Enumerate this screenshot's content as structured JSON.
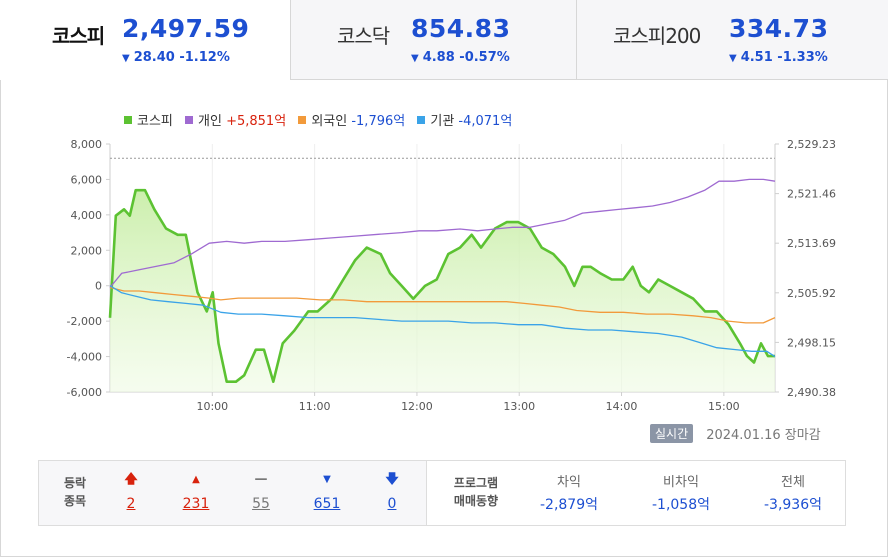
{
  "tabs": [
    {
      "name": "코스피",
      "value": "2,497.59",
      "change": "28.40 -1.12%"
    },
    {
      "name": "코스닥",
      "value": "854.83",
      "change": "4.88 -0.57%"
    },
    {
      "name": "코스피200",
      "value": "334.73",
      "change": "4.51 -1.33%"
    }
  ],
  "legend": [
    {
      "name": "코스피",
      "value": "",
      "color": "#5cc232"
    },
    {
      "name": "개인",
      "value": "+5,851억",
      "color": "#9f6ad1"
    },
    {
      "name": "외국인",
      "value": "-1,796억",
      "color": "#f29a3b"
    },
    {
      "name": "기관",
      "value": "-4,071억",
      "color": "#3aa3e8"
    }
  ],
  "chart_data": {
    "type": "line",
    "y_left_ticks": [
      "8,000",
      "6,000",
      "4,000",
      "2,000",
      "0",
      "-2,000",
      "-4,000",
      "-6,000"
    ],
    "y_right_ticks": [
      "2,529.23",
      "2,521.46",
      "2,513.69",
      "2,505.92",
      "2,498.15",
      "2,490.38"
    ],
    "x_ticks": [
      "10:00",
      "11:00",
      "12:00",
      "13:00",
      "14:00",
      "15:00"
    ],
    "x_range": [
      "09:00",
      "15:30"
    ],
    "ylim_left": [
      -6000,
      8000
    ],
    "ylim_right": [
      2490.38,
      2529.23
    ],
    "series": [
      {
        "name": "코스피",
        "axis": "right",
        "color": "#5cc232",
        "points": [
          [
            0,
            2502
          ],
          [
            5,
            2518
          ],
          [
            12,
            2519
          ],
          [
            17,
            2518
          ],
          [
            22,
            2522
          ],
          [
            30,
            2522
          ],
          [
            38,
            2519
          ],
          [
            48,
            2516
          ],
          [
            58,
            2515
          ],
          [
            65,
            2515
          ],
          [
            75,
            2506
          ],
          [
            83,
            2503
          ],
          [
            88,
            2506
          ],
          [
            93,
            2498
          ],
          [
            100,
            2492
          ],
          [
            108,
            2492
          ],
          [
            115,
            2493
          ],
          [
            125,
            2497
          ],
          [
            132,
            2497
          ],
          [
            140,
            2492
          ],
          [
            148,
            2498
          ],
          [
            158,
            2500
          ],
          [
            170,
            2503
          ],
          [
            178,
            2503
          ],
          [
            190,
            2505
          ],
          [
            200,
            2508
          ],
          [
            210,
            2511
          ],
          [
            220,
            2513
          ],
          [
            232,
            2512
          ],
          [
            240,
            2509
          ],
          [
            250,
            2507
          ],
          [
            260,
            2505
          ],
          [
            270,
            2507
          ],
          [
            280,
            2508
          ],
          [
            290,
            2512
          ],
          [
            300,
            2513
          ],
          [
            310,
            2515
          ],
          [
            318,
            2513
          ],
          [
            330,
            2516
          ],
          [
            340,
            2517
          ],
          [
            350,
            2517
          ],
          [
            360,
            2516
          ],
          [
            370,
            2513
          ],
          [
            380,
            2512
          ],
          [
            390,
            2510
          ],
          [
            398,
            2507
          ],
          [
            405,
            2510
          ],
          [
            412,
            2510
          ],
          [
            420,
            2509
          ],
          [
            430,
            2508
          ],
          [
            440,
            2508
          ],
          [
            448,
            2510
          ],
          [
            455,
            2507
          ],
          [
            462,
            2506
          ],
          [
            470,
            2508
          ],
          [
            480,
            2507
          ],
          [
            490,
            2506
          ],
          [
            500,
            2505
          ],
          [
            510,
            2503
          ],
          [
            520,
            2503
          ],
          [
            530,
            2501
          ],
          [
            540,
            2498
          ],
          [
            546,
            2496
          ],
          [
            552,
            2495
          ],
          [
            558,
            2498
          ],
          [
            564,
            2496
          ],
          [
            570,
            2496
          ]
        ]
      },
      {
        "name": "개인",
        "axis": "left",
        "color": "#9f6ad1",
        "points": [
          [
            0,
            -100
          ],
          [
            10,
            700
          ],
          [
            25,
            900
          ],
          [
            40,
            1100
          ],
          [
            55,
            1300
          ],
          [
            70,
            1800
          ],
          [
            85,
            2400
          ],
          [
            100,
            2500
          ],
          [
            115,
            2400
          ],
          [
            130,
            2500
          ],
          [
            150,
            2500
          ],
          [
            170,
            2600
          ],
          [
            190,
            2700
          ],
          [
            210,
            2800
          ],
          [
            230,
            2900
          ],
          [
            250,
            3000
          ],
          [
            265,
            3100
          ],
          [
            280,
            3100
          ],
          [
            300,
            3200
          ],
          [
            315,
            3100
          ],
          [
            330,
            3200
          ],
          [
            345,
            3300
          ],
          [
            360,
            3300
          ],
          [
            375,
            3500
          ],
          [
            390,
            3700
          ],
          [
            405,
            4100
          ],
          [
            420,
            4200
          ],
          [
            435,
            4300
          ],
          [
            450,
            4400
          ],
          [
            465,
            4500
          ],
          [
            480,
            4700
          ],
          [
            495,
            5000
          ],
          [
            510,
            5400
          ],
          [
            522,
            5900
          ],
          [
            535,
            5900
          ],
          [
            548,
            6000
          ],
          [
            560,
            6000
          ],
          [
            570,
            5900
          ]
        ]
      },
      {
        "name": "외국인",
        "axis": "left",
        "color": "#f29a3b",
        "points": [
          [
            0,
            -100
          ],
          [
            12,
            -300
          ],
          [
            25,
            -300
          ],
          [
            40,
            -400
          ],
          [
            55,
            -500
          ],
          [
            70,
            -600
          ],
          [
            85,
            -700
          ],
          [
            95,
            -800
          ],
          [
            110,
            -700
          ],
          [
            125,
            -700
          ],
          [
            140,
            -700
          ],
          [
            160,
            -700
          ],
          [
            180,
            -800
          ],
          [
            200,
            -800
          ],
          [
            220,
            -900
          ],
          [
            240,
            -900
          ],
          [
            260,
            -900
          ],
          [
            280,
            -900
          ],
          [
            300,
            -900
          ],
          [
            320,
            -900
          ],
          [
            340,
            -900
          ],
          [
            355,
            -1000
          ],
          [
            370,
            -1100
          ],
          [
            385,
            -1200
          ],
          [
            400,
            -1400
          ],
          [
            420,
            -1500
          ],
          [
            440,
            -1500
          ],
          [
            460,
            -1600
          ],
          [
            480,
            -1600
          ],
          [
            500,
            -1700
          ],
          [
            515,
            -1800
          ],
          [
            530,
            -2000
          ],
          [
            545,
            -2100
          ],
          [
            560,
            -2100
          ],
          [
            570,
            -1800
          ]
        ]
      },
      {
        "name": "기관",
        "axis": "left",
        "color": "#3aa3e8",
        "points": [
          [
            0,
            0
          ],
          [
            10,
            -400
          ],
          [
            22,
            -600
          ],
          [
            35,
            -800
          ],
          [
            50,
            -900
          ],
          [
            65,
            -1000
          ],
          [
            80,
            -1100
          ],
          [
            95,
            -1500
          ],
          [
            110,
            -1600
          ],
          [
            130,
            -1600
          ],
          [
            150,
            -1700
          ],
          [
            170,
            -1800
          ],
          [
            190,
            -1800
          ],
          [
            210,
            -1800
          ],
          [
            230,
            -1900
          ],
          [
            250,
            -2000
          ],
          [
            270,
            -2000
          ],
          [
            290,
            -2000
          ],
          [
            310,
            -2100
          ],
          [
            330,
            -2100
          ],
          [
            350,
            -2200
          ],
          [
            370,
            -2200
          ],
          [
            390,
            -2400
          ],
          [
            410,
            -2500
          ],
          [
            430,
            -2500
          ],
          [
            450,
            -2600
          ],
          [
            470,
            -2700
          ],
          [
            490,
            -2900
          ],
          [
            505,
            -3200
          ],
          [
            520,
            -3500
          ],
          [
            535,
            -3600
          ],
          [
            550,
            -3700
          ],
          [
            563,
            -3700
          ],
          [
            570,
            -4000
          ]
        ]
      }
    ],
    "reference_line_right": 2527.0,
    "grid": "vertical at hour ticks"
  },
  "status": {
    "badge": "실시간",
    "datetime": "2024.01.16 장마감"
  },
  "summary": {
    "updown_label_1": "등락",
    "updown_label_2": "종목",
    "counts": [
      {
        "icon": "limit-up-arrow-icon",
        "glyph": "🡅",
        "value": "2",
        "tone": "red"
      },
      {
        "icon": "up-triangle-icon",
        "glyph": "▲",
        "value": "231",
        "tone": "red"
      },
      {
        "icon": "flat-dash-icon",
        "glyph": "—",
        "value": "55",
        "tone": "gray"
      },
      {
        "icon": "down-triangle-icon",
        "glyph": "▼",
        "value": "651",
        "tone": "blue"
      },
      {
        "icon": "limit-down-arrow-icon",
        "glyph": "🡇",
        "value": "0",
        "tone": "blue"
      }
    ],
    "program_label_1": "프로그램",
    "program_label_2": "매매동향",
    "program": [
      {
        "label": "차익",
        "value": "-2,879억"
      },
      {
        "label": "비차익",
        "value": "-1,058억"
      },
      {
        "label": "전체",
        "value": "-3,936억"
      }
    ]
  }
}
